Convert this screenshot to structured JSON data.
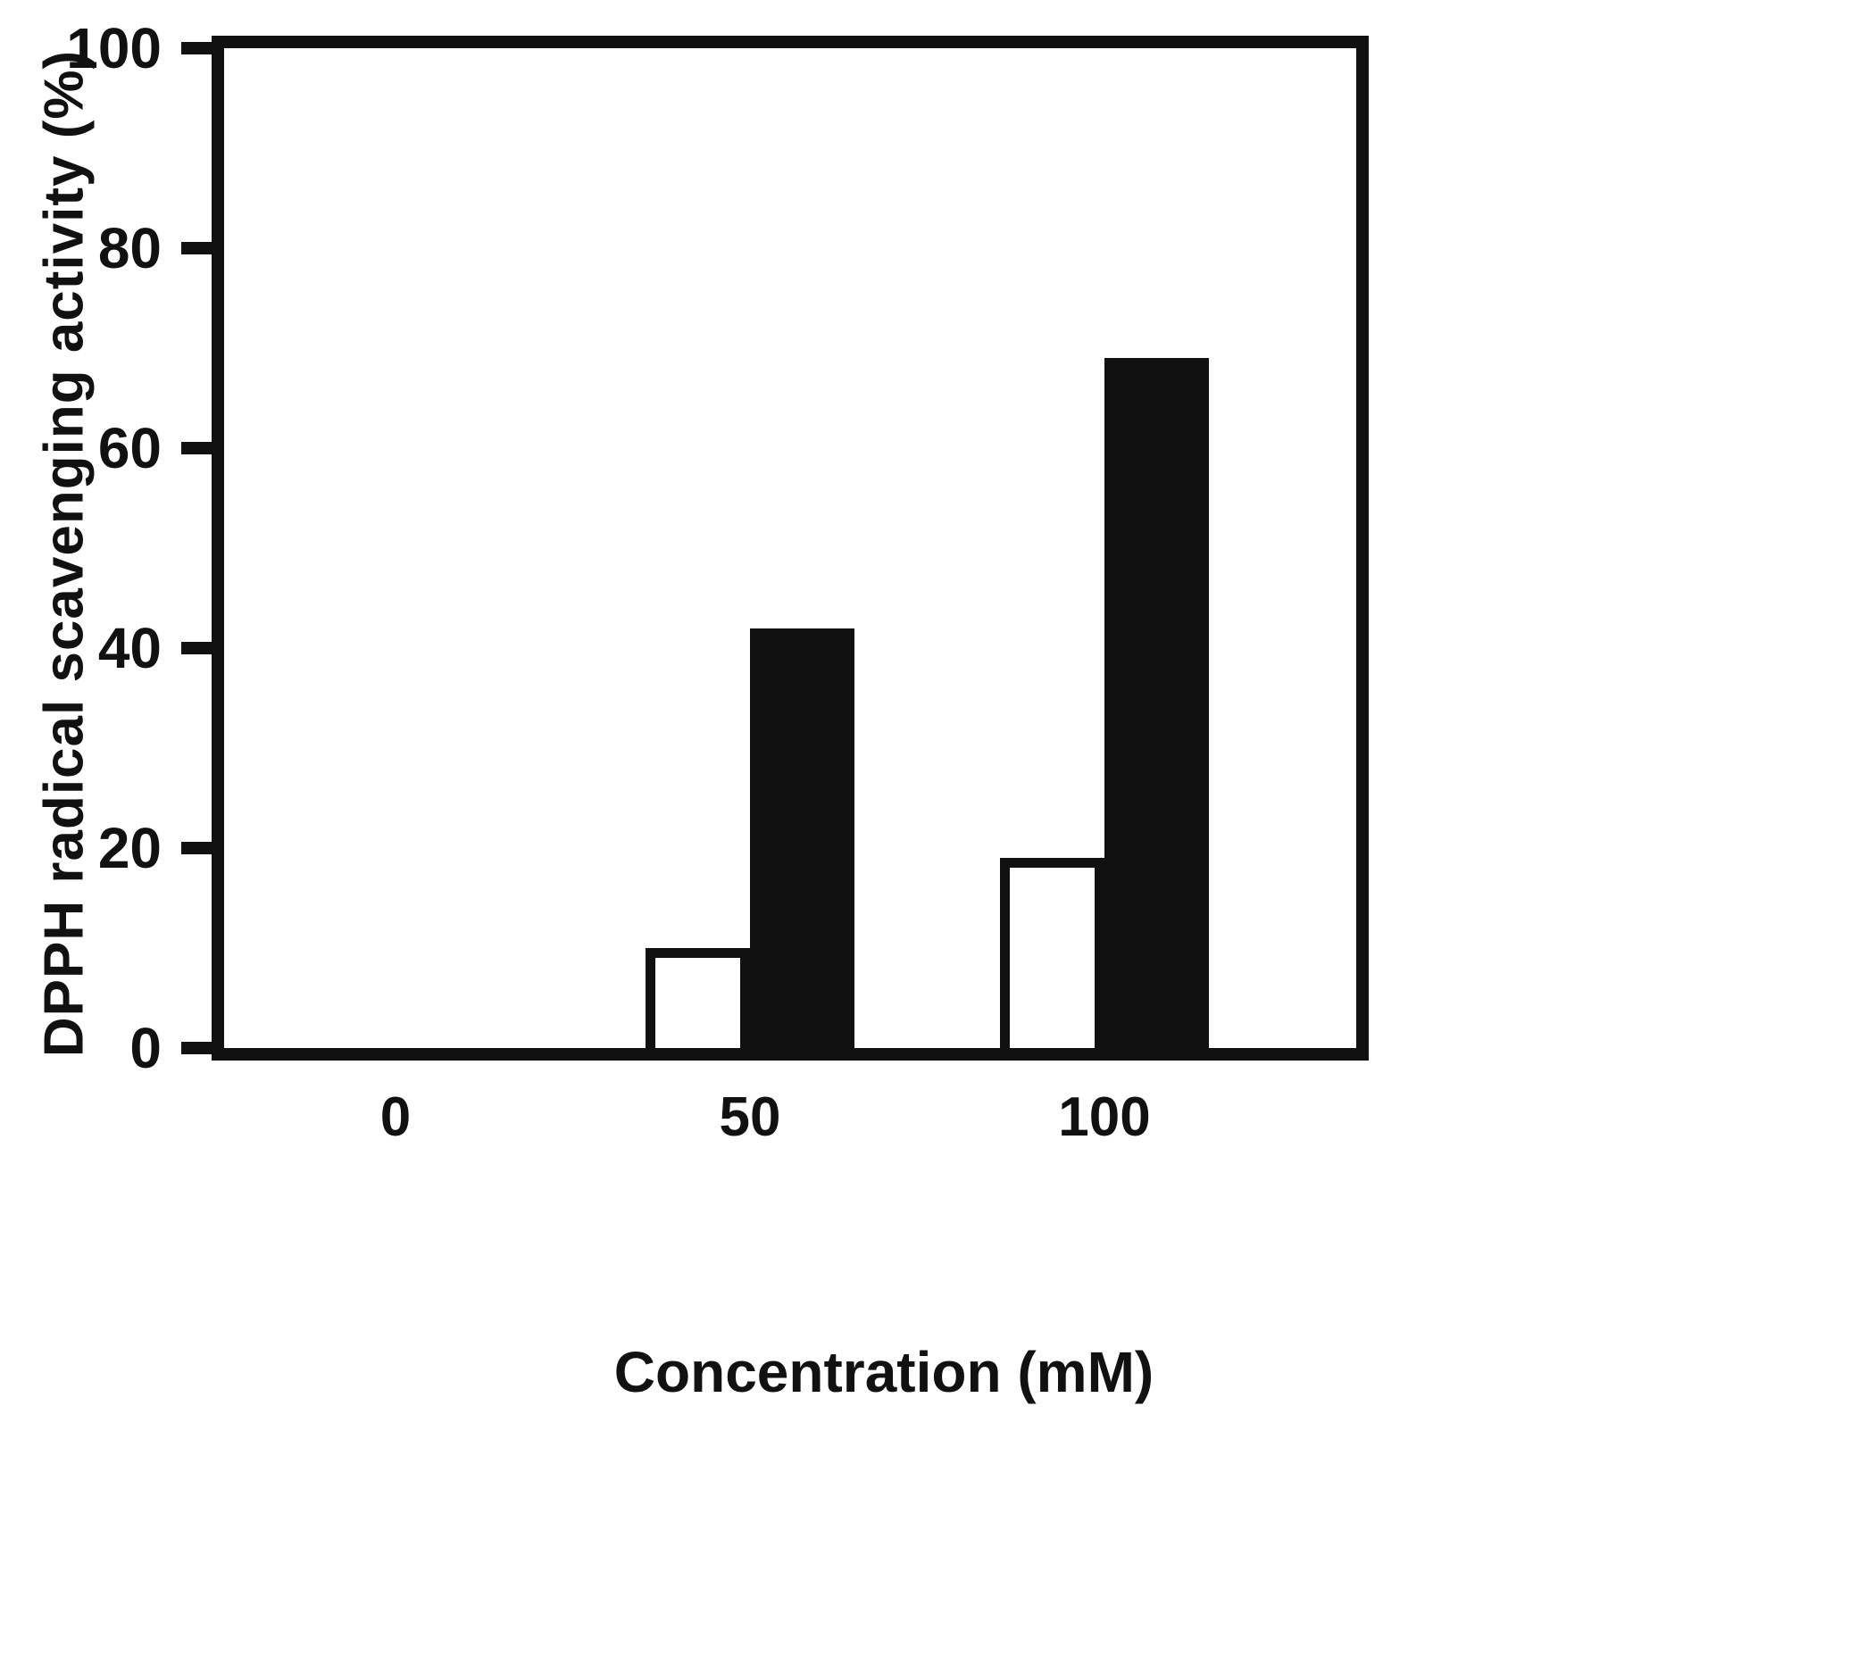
{
  "chart_data": {
    "type": "bar",
    "title": "",
    "xlabel": "Concentration (mM)",
    "ylabel": "DPPH radical scavenging activity (%)",
    "categories": [
      "0",
      "50",
      "100"
    ],
    "series": [
      {
        "name": "open",
        "fill": "#ffffff",
        "values": [
          0,
          10,
          19
        ]
      },
      {
        "name": "filled",
        "fill": "#111111",
        "values": [
          0,
          42,
          69
        ]
      }
    ],
    "yticks": [
      0,
      20,
      40,
      60,
      80,
      100
    ],
    "ylim": [
      0,
      100
    ],
    "grid": false,
    "legend": "none",
    "frame_color": "#111111"
  }
}
